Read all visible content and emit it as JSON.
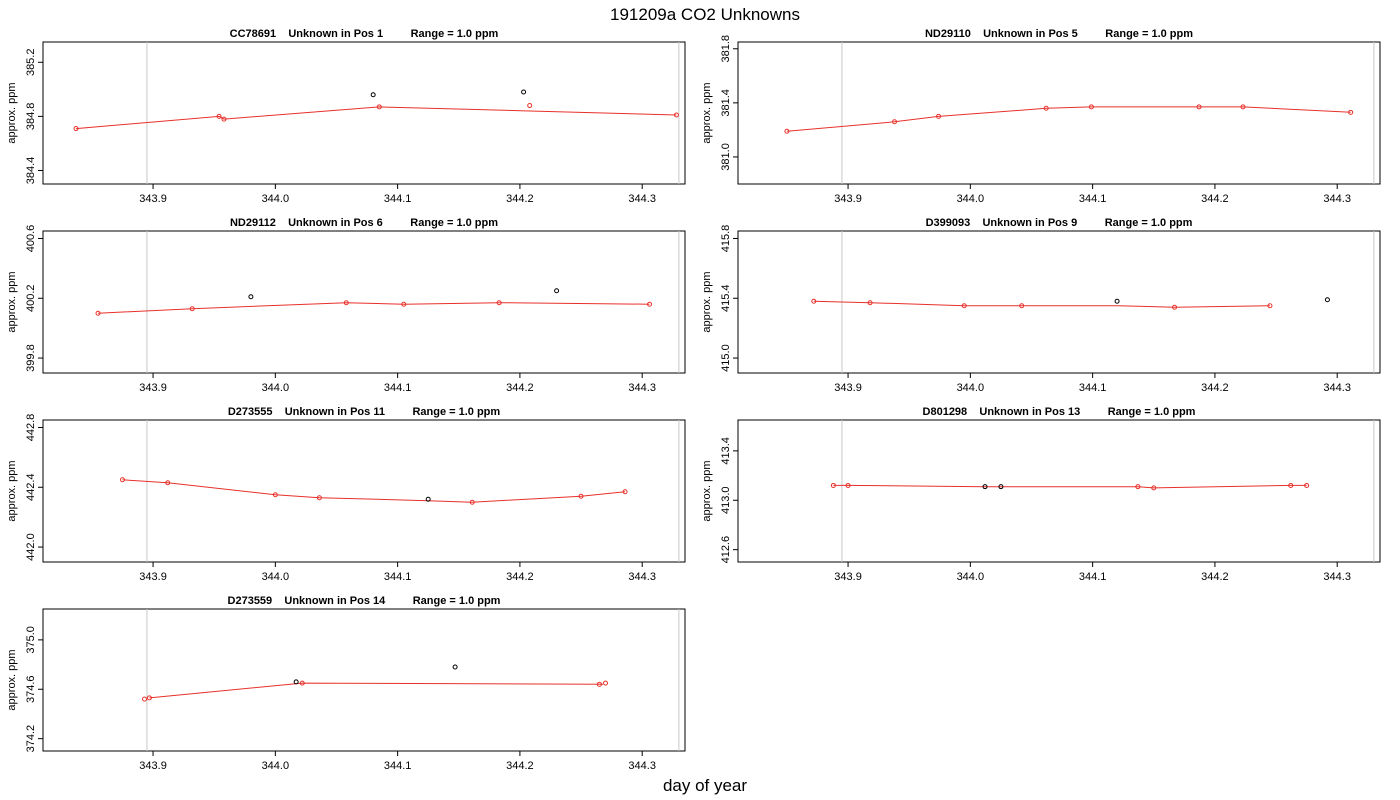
{
  "figure": {
    "title": "191209a  CO2 Unknowns",
    "xlabel": "day of year"
  },
  "chart_data": [
    {
      "type": "scatter",
      "title": "CC78691    Unknown in Pos 1         Range = 1.0 ppm",
      "ylabel": "approx. ppm",
      "xlim": [
        343.81,
        344.335
      ],
      "ylim": [
        384.3,
        385.35
      ],
      "xticks": [
        "343.9",
        "344.0",
        "344.1",
        "344.2",
        "344.3"
      ],
      "yticks": [
        "384.4",
        "384.8",
        "385.2"
      ],
      "vlines": [
        343.895,
        344.33
      ],
      "fit": {
        "x": [
          343.837,
          343.954,
          343.958,
          344.085,
          344.208,
          344.328
        ],
        "y": [
          384.71,
          384.8,
          384.78,
          384.87,
          384.84,
          384.81
        ]
      },
      "points": [
        {
          "x": 343.837,
          "y": 384.71,
          "color": "#e8302a"
        },
        {
          "x": 343.954,
          "y": 384.8,
          "color": "#e8302a"
        },
        {
          "x": 343.958,
          "y": 384.78,
          "color": "#e8302a"
        },
        {
          "x": 344.08,
          "y": 384.96,
          "color": "#000000"
        },
        {
          "x": 344.085,
          "y": 384.87,
          "color": "#e8302a"
        },
        {
          "x": 344.203,
          "y": 384.98,
          "color": "#000000"
        },
        {
          "x": 344.208,
          "y": 384.88,
          "color": "#e8302a"
        },
        {
          "x": 344.328,
          "y": 384.81,
          "color": "#e8302a"
        }
      ]
    },
    {
      "type": "scatter",
      "title": "ND29110    Unknown in Pos 5         Range = 1.0 ppm",
      "ylabel": "approx. ppm",
      "xlim": [
        343.81,
        344.335
      ],
      "ylim": [
        380.8,
        381.85
      ],
      "xticks": [
        "343.9",
        "344.0",
        "344.1",
        "344.2",
        "344.3"
      ],
      "yticks": [
        "381.0",
        "381.4",
        "381.8"
      ],
      "vlines": [
        343.895,
        344.33
      ],
      "fit": {
        "x": [
          343.85,
          343.938,
          343.974,
          344.062,
          344.099,
          344.187,
          344.223,
          344.311
        ],
        "y": [
          381.19,
          381.26,
          381.3,
          381.36,
          381.37,
          381.37,
          381.37,
          381.33
        ]
      },
      "points": [
        {
          "x": 343.85,
          "y": 381.19,
          "color": "#e8302a"
        },
        {
          "x": 343.938,
          "y": 381.26,
          "color": "#e8302a"
        },
        {
          "x": 343.974,
          "y": 381.3,
          "color": "#e8302a"
        },
        {
          "x": 344.062,
          "y": 381.36,
          "color": "#e8302a"
        },
        {
          "x": 344.099,
          "y": 381.37,
          "color": "#e8302a"
        },
        {
          "x": 344.187,
          "y": 381.37,
          "color": "#e8302a"
        },
        {
          "x": 344.223,
          "y": 381.37,
          "color": "#e8302a"
        },
        {
          "x": 344.311,
          "y": 381.33,
          "color": "#e8302a"
        }
      ]
    },
    {
      "type": "scatter",
      "title": "ND29112    Unknown in Pos 6         Range = 1.0 ppm",
      "ylabel": "approx. ppm",
      "xlim": [
        343.81,
        344.335
      ],
      "ylim": [
        399.7,
        400.65
      ],
      "xticks": [
        "343.9",
        "344.0",
        "344.1",
        "344.2",
        "344.3"
      ],
      "yticks": [
        "399.8",
        "400.2",
        "400.6"
      ],
      "vlines": [
        343.895,
        344.33
      ],
      "fit": {
        "x": [
          343.855,
          343.932,
          344.058,
          344.105,
          344.183,
          344.306
        ],
        "y": [
          400.1,
          400.13,
          400.17,
          400.16,
          400.17,
          400.16
        ]
      },
      "points": [
        {
          "x": 343.855,
          "y": 400.1,
          "color": "#e8302a"
        },
        {
          "x": 343.932,
          "y": 400.13,
          "color": "#e8302a"
        },
        {
          "x": 343.98,
          "y": 400.21,
          "color": "#000000"
        },
        {
          "x": 344.058,
          "y": 400.17,
          "color": "#e8302a"
        },
        {
          "x": 344.105,
          "y": 400.16,
          "color": "#e8302a"
        },
        {
          "x": 344.183,
          "y": 400.17,
          "color": "#e8302a"
        },
        {
          "x": 344.23,
          "y": 400.25,
          "color": "#000000"
        },
        {
          "x": 344.306,
          "y": 400.16,
          "color": "#e8302a"
        }
      ]
    },
    {
      "type": "scatter",
      "title": "D399093    Unknown in Pos 9         Range = 1.0 ppm",
      "ylabel": "approx. ppm",
      "xlim": [
        343.81,
        344.335
      ],
      "ylim": [
        414.9,
        415.85
      ],
      "xticks": [
        "343.9",
        "344.0",
        "344.1",
        "344.2",
        "344.3"
      ],
      "yticks": [
        "415.0",
        "415.4",
        "415.8"
      ],
      "vlines": [
        343.895,
        344.33
      ],
      "fit": {
        "x": [
          343.872,
          343.918,
          343.995,
          344.042,
          344.12,
          344.167,
          344.245
        ],
        "y": [
          415.38,
          415.37,
          415.35,
          415.35,
          415.35,
          415.34,
          415.35
        ]
      },
      "points": [
        {
          "x": 343.872,
          "y": 415.38,
          "color": "#e8302a"
        },
        {
          "x": 343.918,
          "y": 415.37,
          "color": "#e8302a"
        },
        {
          "x": 343.995,
          "y": 415.35,
          "color": "#e8302a"
        },
        {
          "x": 344.042,
          "y": 415.35,
          "color": "#e8302a"
        },
        {
          "x": 344.12,
          "y": 415.38,
          "color": "#000000"
        },
        {
          "x": 344.167,
          "y": 415.34,
          "color": "#e8302a"
        },
        {
          "x": 344.245,
          "y": 415.35,
          "color": "#e8302a"
        },
        {
          "x": 344.292,
          "y": 415.39,
          "color": "#000000"
        }
      ]
    },
    {
      "type": "scatter",
      "title": "D273555    Unknown in Pos 11         Range = 1.0 ppm",
      "ylabel": "approx. ppm",
      "xlim": [
        343.81,
        344.335
      ],
      "ylim": [
        441.9,
        442.85
      ],
      "xticks": [
        "343.9",
        "344.0",
        "344.1",
        "344.2",
        "344.3"
      ],
      "yticks": [
        "442.0",
        "442.4",
        "442.8"
      ],
      "vlines": [
        343.895,
        344.33
      ],
      "fit": {
        "x": [
          343.875,
          343.912,
          344.0,
          344.036,
          344.125,
          344.161,
          344.25,
          344.286
        ],
        "y": [
          442.45,
          442.43,
          442.35,
          442.33,
          442.31,
          442.3,
          442.34,
          442.37
        ]
      },
      "points": [
        {
          "x": 343.875,
          "y": 442.45,
          "color": "#e8302a"
        },
        {
          "x": 343.912,
          "y": 442.43,
          "color": "#e8302a"
        },
        {
          "x": 344.0,
          "y": 442.35,
          "color": "#e8302a"
        },
        {
          "x": 344.036,
          "y": 442.33,
          "color": "#e8302a"
        },
        {
          "x": 344.125,
          "y": 442.32,
          "color": "#000000"
        },
        {
          "x": 344.161,
          "y": 442.3,
          "color": "#e8302a"
        },
        {
          "x": 344.25,
          "y": 442.34,
          "color": "#e8302a"
        },
        {
          "x": 344.286,
          "y": 442.37,
          "color": "#e8302a"
        }
      ]
    },
    {
      "type": "scatter",
      "title": "D801298    Unknown in Pos 13         Range = 1.0 ppm",
      "ylabel": "approx. ppm",
      "xlim": [
        343.81,
        344.335
      ],
      "ylim": [
        412.5,
        413.65
      ],
      "xticks": [
        "343.9",
        "344.0",
        "344.1",
        "344.2",
        "344.3"
      ],
      "yticks": [
        "412.6",
        "413.0",
        "413.4"
      ],
      "vlines": [
        343.895,
        344.33
      ],
      "fit": {
        "x": [
          343.888,
          343.9,
          344.012,
          344.025,
          344.137,
          344.15,
          344.262,
          344.275
        ],
        "y": [
          413.12,
          413.12,
          413.11,
          413.11,
          413.11,
          413.1,
          413.12,
          413.12
        ]
      },
      "points": [
        {
          "x": 343.888,
          "y": 413.12,
          "color": "#e8302a"
        },
        {
          "x": 343.9,
          "y": 413.12,
          "color": "#e8302a"
        },
        {
          "x": 344.012,
          "y": 413.11,
          "color": "#000000"
        },
        {
          "x": 344.025,
          "y": 413.11,
          "color": "#000000"
        },
        {
          "x": 344.137,
          "y": 413.11,
          "color": "#e8302a"
        },
        {
          "x": 344.15,
          "y": 413.1,
          "color": "#e8302a"
        },
        {
          "x": 344.262,
          "y": 413.12,
          "color": "#e8302a"
        },
        {
          "x": 344.275,
          "y": 413.12,
          "color": "#e8302a"
        }
      ]
    },
    {
      "type": "scatter",
      "title": "D273559    Unknown in Pos 14         Range = 1.0 ppm",
      "ylabel": "approx. ppm",
      "xlim": [
        343.81,
        344.335
      ],
      "ylim": [
        374.1,
        375.25
      ],
      "xticks": [
        "343.9",
        "344.0",
        "344.1",
        "344.2",
        "344.3"
      ],
      "yticks": [
        "374.2",
        "374.6",
        "375.0"
      ],
      "vlines": [
        343.895,
        344.33
      ],
      "fit": {
        "x": [
          343.897,
          344.022,
          344.268
        ],
        "y": [
          374.53,
          374.65,
          374.64
        ]
      },
      "points": [
        {
          "x": 343.893,
          "y": 374.52,
          "color": "#e8302a"
        },
        {
          "x": 343.897,
          "y": 374.53,
          "color": "#e8302a"
        },
        {
          "x": 344.017,
          "y": 374.66,
          "color": "#000000"
        },
        {
          "x": 344.022,
          "y": 374.65,
          "color": "#e8302a"
        },
        {
          "x": 344.147,
          "y": 374.78,
          "color": "#000000"
        },
        {
          "x": 344.265,
          "y": 374.64,
          "color": "#e8302a"
        },
        {
          "x": 344.27,
          "y": 374.65,
          "color": "#e8302a"
        }
      ]
    }
  ]
}
